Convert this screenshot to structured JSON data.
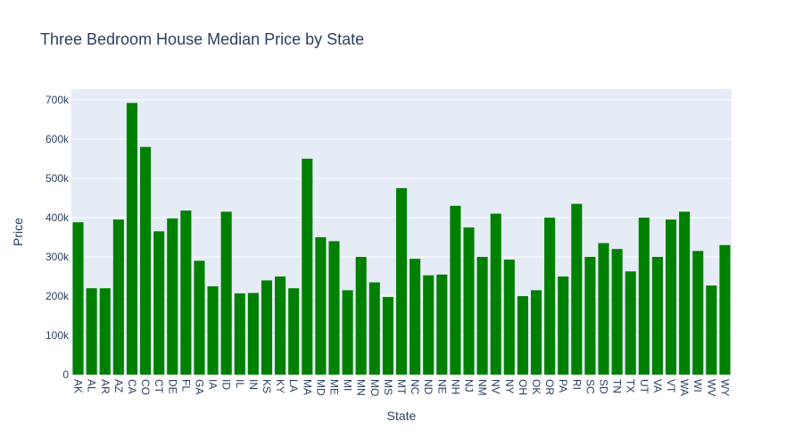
{
  "chart_data": {
    "type": "bar",
    "title": "Three Bedroom House Median Price by State",
    "xlabel": "State",
    "ylabel": "Price",
    "ylim": [
      0,
      727000
    ],
    "yticks": [
      0,
      100000,
      200000,
      300000,
      400000,
      500000,
      600000,
      700000
    ],
    "ytick_labels": [
      "0",
      "100k",
      "200k",
      "300k",
      "400k",
      "500k",
      "600k",
      "700k"
    ],
    "grid": true,
    "legend": "none",
    "colors": {
      "bar": "#008000",
      "plot_bg": "#e5ecf6",
      "grid": "#ffffff",
      "text": "#2a3f5f"
    },
    "categories": [
      "AK",
      "AL",
      "AR",
      "AZ",
      "CA",
      "CO",
      "CT",
      "DE",
      "FL",
      "GA",
      "IA",
      "ID",
      "IL",
      "IN",
      "KS",
      "KY",
      "LA",
      "MA",
      "MD",
      "ME",
      "MI",
      "MN",
      "MO",
      "MS",
      "MT",
      "NC",
      "ND",
      "NE",
      "NH",
      "NJ",
      "NM",
      "NV",
      "NY",
      "OH",
      "OK",
      "OR",
      "PA",
      "RI",
      "SC",
      "SD",
      "TN",
      "TX",
      "UT",
      "VA",
      "VT",
      "WA",
      "WI",
      "WV",
      "WY"
    ],
    "values": [
      388000,
      220000,
      220000,
      395000,
      692000,
      580000,
      365000,
      398000,
      418000,
      290000,
      225000,
      415000,
      207000,
      208000,
      240000,
      250000,
      220000,
      550000,
      350000,
      340000,
      215000,
      300000,
      235000,
      198000,
      475000,
      295000,
      253000,
      255000,
      430000,
      375000,
      300000,
      410000,
      293000,
      200000,
      215000,
      400000,
      250000,
      435000,
      300000,
      335000,
      320000,
      263000,
      400000,
      300000,
      395000,
      415000,
      315000,
      227000,
      330000
    ]
  }
}
